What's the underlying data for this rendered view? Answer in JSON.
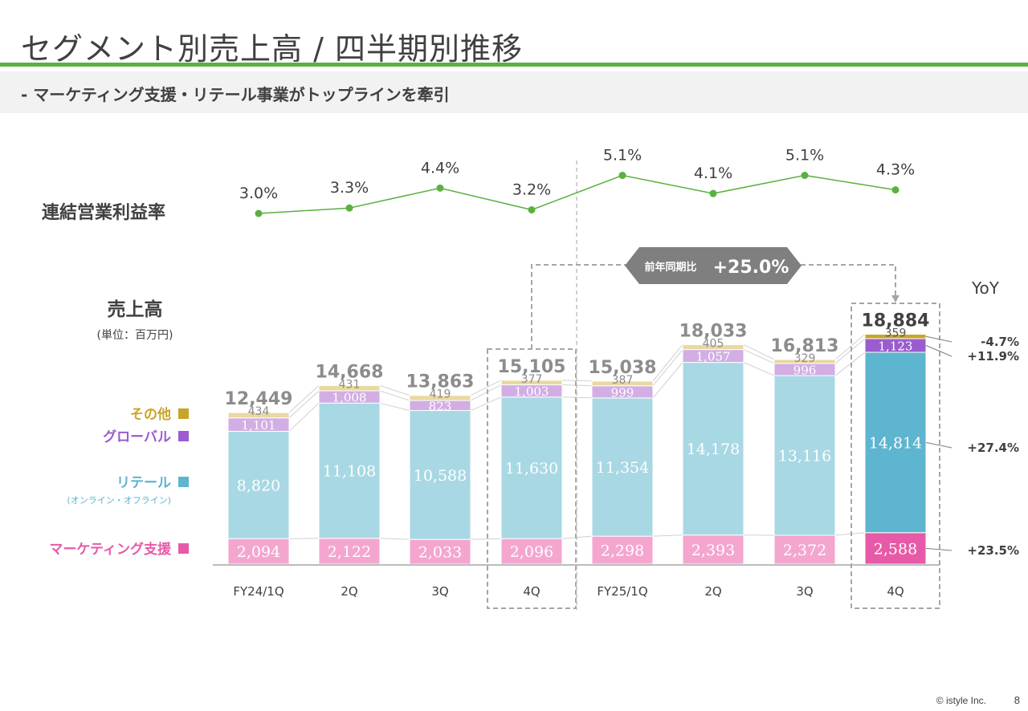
{
  "page": {
    "title": "セグメント別売上高 / 四半期別推移",
    "subtitle": "-  マーケティング支援・リテール事業がトップラインを牽引",
    "copyright": "© istyle Inc.",
    "page_number": "8"
  },
  "chart_data": {
    "type": "bar",
    "stacked": true,
    "categories": [
      "FY24/1Q",
      "2Q",
      "3Q",
      "4Q",
      "FY25/1Q",
      "2Q",
      "3Q",
      "4Q"
    ],
    "series": [
      {
        "name": "マーケティング支援",
        "values": [
          2094,
          2122,
          2033,
          2096,
          2298,
          2393,
          2372,
          2588
        ],
        "color": "#f4a6cf",
        "highlight_color": "#e75aa7",
        "yoy": "+23.5%"
      },
      {
        "name": "リテール",
        "sub": "(オンライン・オフライン)",
        "values": [
          8820,
          11108,
          10588,
          11630,
          11354,
          14178,
          13116,
          14814
        ],
        "color": "#a8d8e4",
        "highlight_color": "#5db5cf",
        "yoy": "+27.4%"
      },
      {
        "name": "グローバル",
        "values": [
          1101,
          1008,
          823,
          1003,
          999,
          1057,
          996,
          1123
        ],
        "color": "#d2aee4",
        "highlight_color": "#9b5ccf",
        "yoy": "+11.9%"
      },
      {
        "name": "その他",
        "values": [
          434,
          431,
          419,
          377,
          387,
          405,
          329,
          359
        ],
        "color": "#e9d8a0",
        "highlight_color": "#c9a428",
        "yoy": "-4.7%"
      }
    ],
    "totals": [
      12449,
      14668,
      13863,
      15105,
      15038,
      18033,
      16813,
      18884
    ],
    "sales_label": "売上高",
    "unit_label": "(単位：百万円)",
    "yoy_header": "YoY",
    "comparison_label": "前年同期比",
    "comparison_value": "+25.0%",
    "operating_margin": {
      "label": "連結営業利益率",
      "values": [
        3.0,
        3.3,
        4.4,
        3.2,
        5.1,
        4.1,
        5.1,
        4.3
      ],
      "value_labels": [
        "3.0%",
        "3.3%",
        "4.4%",
        "3.2%",
        "5.1%",
        "4.1%",
        "5.1%",
        "4.3%"
      ],
      "color": "#5bb040"
    },
    "grid": false,
    "legend": "left"
  }
}
